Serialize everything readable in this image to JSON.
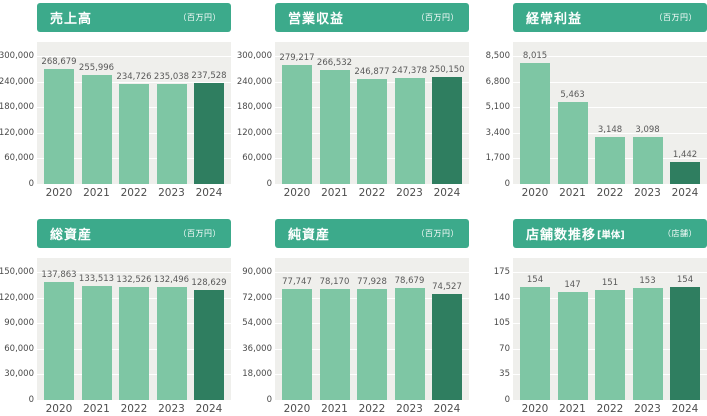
{
  "colors": {
    "header_green": "#3caa8b",
    "bar_light": "#7ec6a4",
    "bar_dark": "#2f7e60",
    "plot_bg": "#efefec",
    "grid_line": "#ffffff",
    "tick_text": "#4a4a4a",
    "value_text": "#595959"
  },
  "chart_data": [
    {
      "type": "bar",
      "title": "売上高",
      "title_suffix": "",
      "unit": "（百万円）",
      "categories": [
        "2020",
        "2021",
        "2022",
        "2023",
        "2024"
      ],
      "values": [
        268679,
        255996,
        234726,
        235038,
        237528
      ],
      "value_labels": [
        "268,679",
        "255,996",
        "234,726",
        "235,038",
        "237,528"
      ],
      "ylim": [
        0,
        300000
      ],
      "ytick_labels": [
        "300,000",
        "240,000",
        "180,000",
        "120,000",
        "60,000",
        "0"
      ],
      "grid": true,
      "highlight_last_bar": true
    },
    {
      "type": "bar",
      "title": "営業収益",
      "title_suffix": "",
      "unit": "（百万円）",
      "categories": [
        "2020",
        "2021",
        "2022",
        "2023",
        "2024"
      ],
      "values": [
        279217,
        266532,
        246877,
        247378,
        250150
      ],
      "value_labels": [
        "279,217",
        "266,532",
        "246,877",
        "247,378",
        "250,150"
      ],
      "ylim": [
        0,
        300000
      ],
      "ytick_labels": [
        "300,000",
        "240,000",
        "180,000",
        "120,000",
        "60,000",
        "0"
      ],
      "grid": true,
      "highlight_last_bar": true
    },
    {
      "type": "bar",
      "title": "経常利益",
      "title_suffix": "",
      "unit": "（百万円）",
      "categories": [
        "2020",
        "2021",
        "2022",
        "2023",
        "2024"
      ],
      "values": [
        8015,
        5463,
        3148,
        3098,
        1442
      ],
      "value_labels": [
        "8,015",
        "5,463",
        "3,148",
        "3,098",
        "1,442"
      ],
      "ylim": [
        0,
        8500
      ],
      "ytick_labels": [
        "8,500",
        "6,800",
        "5,100",
        "3,400",
        "1,700",
        "0"
      ],
      "grid": true,
      "highlight_last_bar": true
    },
    {
      "type": "bar",
      "title": "総資産",
      "title_suffix": "",
      "unit": "（百万円）",
      "categories": [
        "2020",
        "2021",
        "2022",
        "2023",
        "2024"
      ],
      "values": [
        137863,
        133513,
        132526,
        132496,
        128629
      ],
      "value_labels": [
        "137,863",
        "133,513",
        "132,526",
        "132,496",
        "128,629"
      ],
      "ylim": [
        0,
        150000
      ],
      "ytick_labels": [
        "150,000",
        "120,000",
        "90,000",
        "60,000",
        "30,000",
        "0"
      ],
      "grid": true,
      "highlight_last_bar": true
    },
    {
      "type": "bar",
      "title": "純資産",
      "title_suffix": "",
      "unit": "（百万円）",
      "categories": [
        "2020",
        "2021",
        "2022",
        "2023",
        "2024"
      ],
      "values": [
        77747,
        78170,
        77928,
        78679,
        74527
      ],
      "value_labels": [
        "77,747",
        "78,170",
        "77,928",
        "78,679",
        "74,527"
      ],
      "ylim": [
        0,
        90000
      ],
      "ytick_labels": [
        "90,000",
        "72,000",
        "54,000",
        "36,000",
        "18,000",
        "0"
      ],
      "grid": true,
      "highlight_last_bar": true
    },
    {
      "type": "bar",
      "title": "店舗数推移",
      "title_suffix": "[単体]",
      "unit": "（店舗）",
      "categories": [
        "2020",
        "2021",
        "2022",
        "2023",
        "2024"
      ],
      "values": [
        154,
        147,
        151,
        153,
        154
      ],
      "value_labels": [
        "154",
        "147",
        "151",
        "153",
        "154"
      ],
      "ylim": [
        0,
        175
      ],
      "ytick_labels": [
        "175",
        "140",
        "105",
        "70",
        "35",
        "0"
      ],
      "grid": true,
      "highlight_last_bar": true
    }
  ]
}
